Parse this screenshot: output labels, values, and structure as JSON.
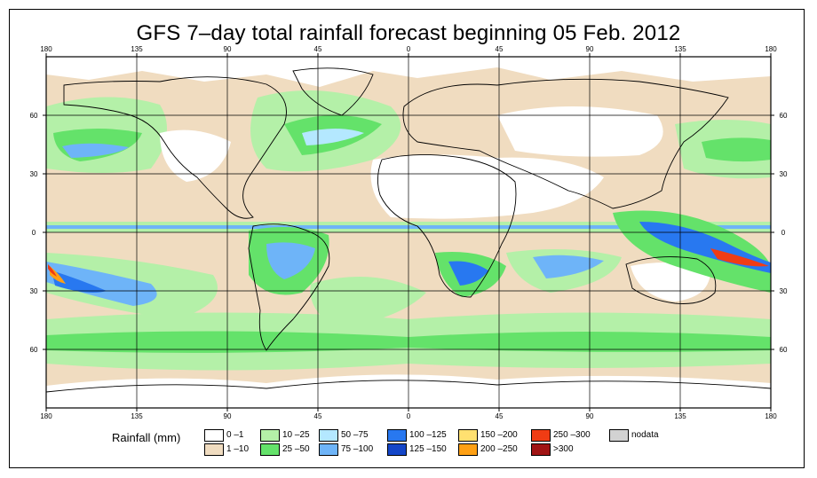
{
  "title": "GFS 7–day total rainfall forecast beginning 05 Feb. 2012",
  "axes": {
    "top_ticks": [
      "180",
      "135",
      "90",
      "45",
      "0",
      "45",
      "90",
      "135",
      "180"
    ],
    "bottom_ticks": [
      "180",
      "135",
      "90",
      "45",
      "0",
      "45",
      "90",
      "135",
      "180"
    ],
    "left_ticks": [
      "60",
      "30",
      "0",
      "30",
      "60"
    ],
    "right_ticks": [
      "60",
      "30",
      "0",
      "30",
      "60"
    ],
    "lon_range": [
      -180,
      180
    ],
    "lat_range": [
      -90,
      90
    ],
    "grid": true
  },
  "legend": {
    "title": "Rainfall (mm)",
    "items": [
      {
        "label": "0 –1",
        "color": "#ffffff"
      },
      {
        "label": "1 –10",
        "color": "#f0dcc0"
      },
      {
        "label": "10 –25",
        "color": "#b4f0a8"
      },
      {
        "label": "25 –50",
        "color": "#64e26a"
      },
      {
        "label": "50 –75",
        "color": "#b4e8ff"
      },
      {
        "label": "75 –100",
        "color": "#6eb4f8"
      },
      {
        "label": "100 –125",
        "color": "#2878f0"
      },
      {
        "label": "125 –150",
        "color": "#1446c8"
      },
      {
        "label": "150 –200",
        "color": "#ffe070"
      },
      {
        "label": "200 –250",
        "color": "#ffa014"
      },
      {
        "label": "250 –300",
        "color": "#f03c14"
      },
      {
        "label": ">300",
        "color": "#a01414"
      },
      {
        "label": "nodata",
        "color": "#d2d2d2"
      }
    ]
  }
}
